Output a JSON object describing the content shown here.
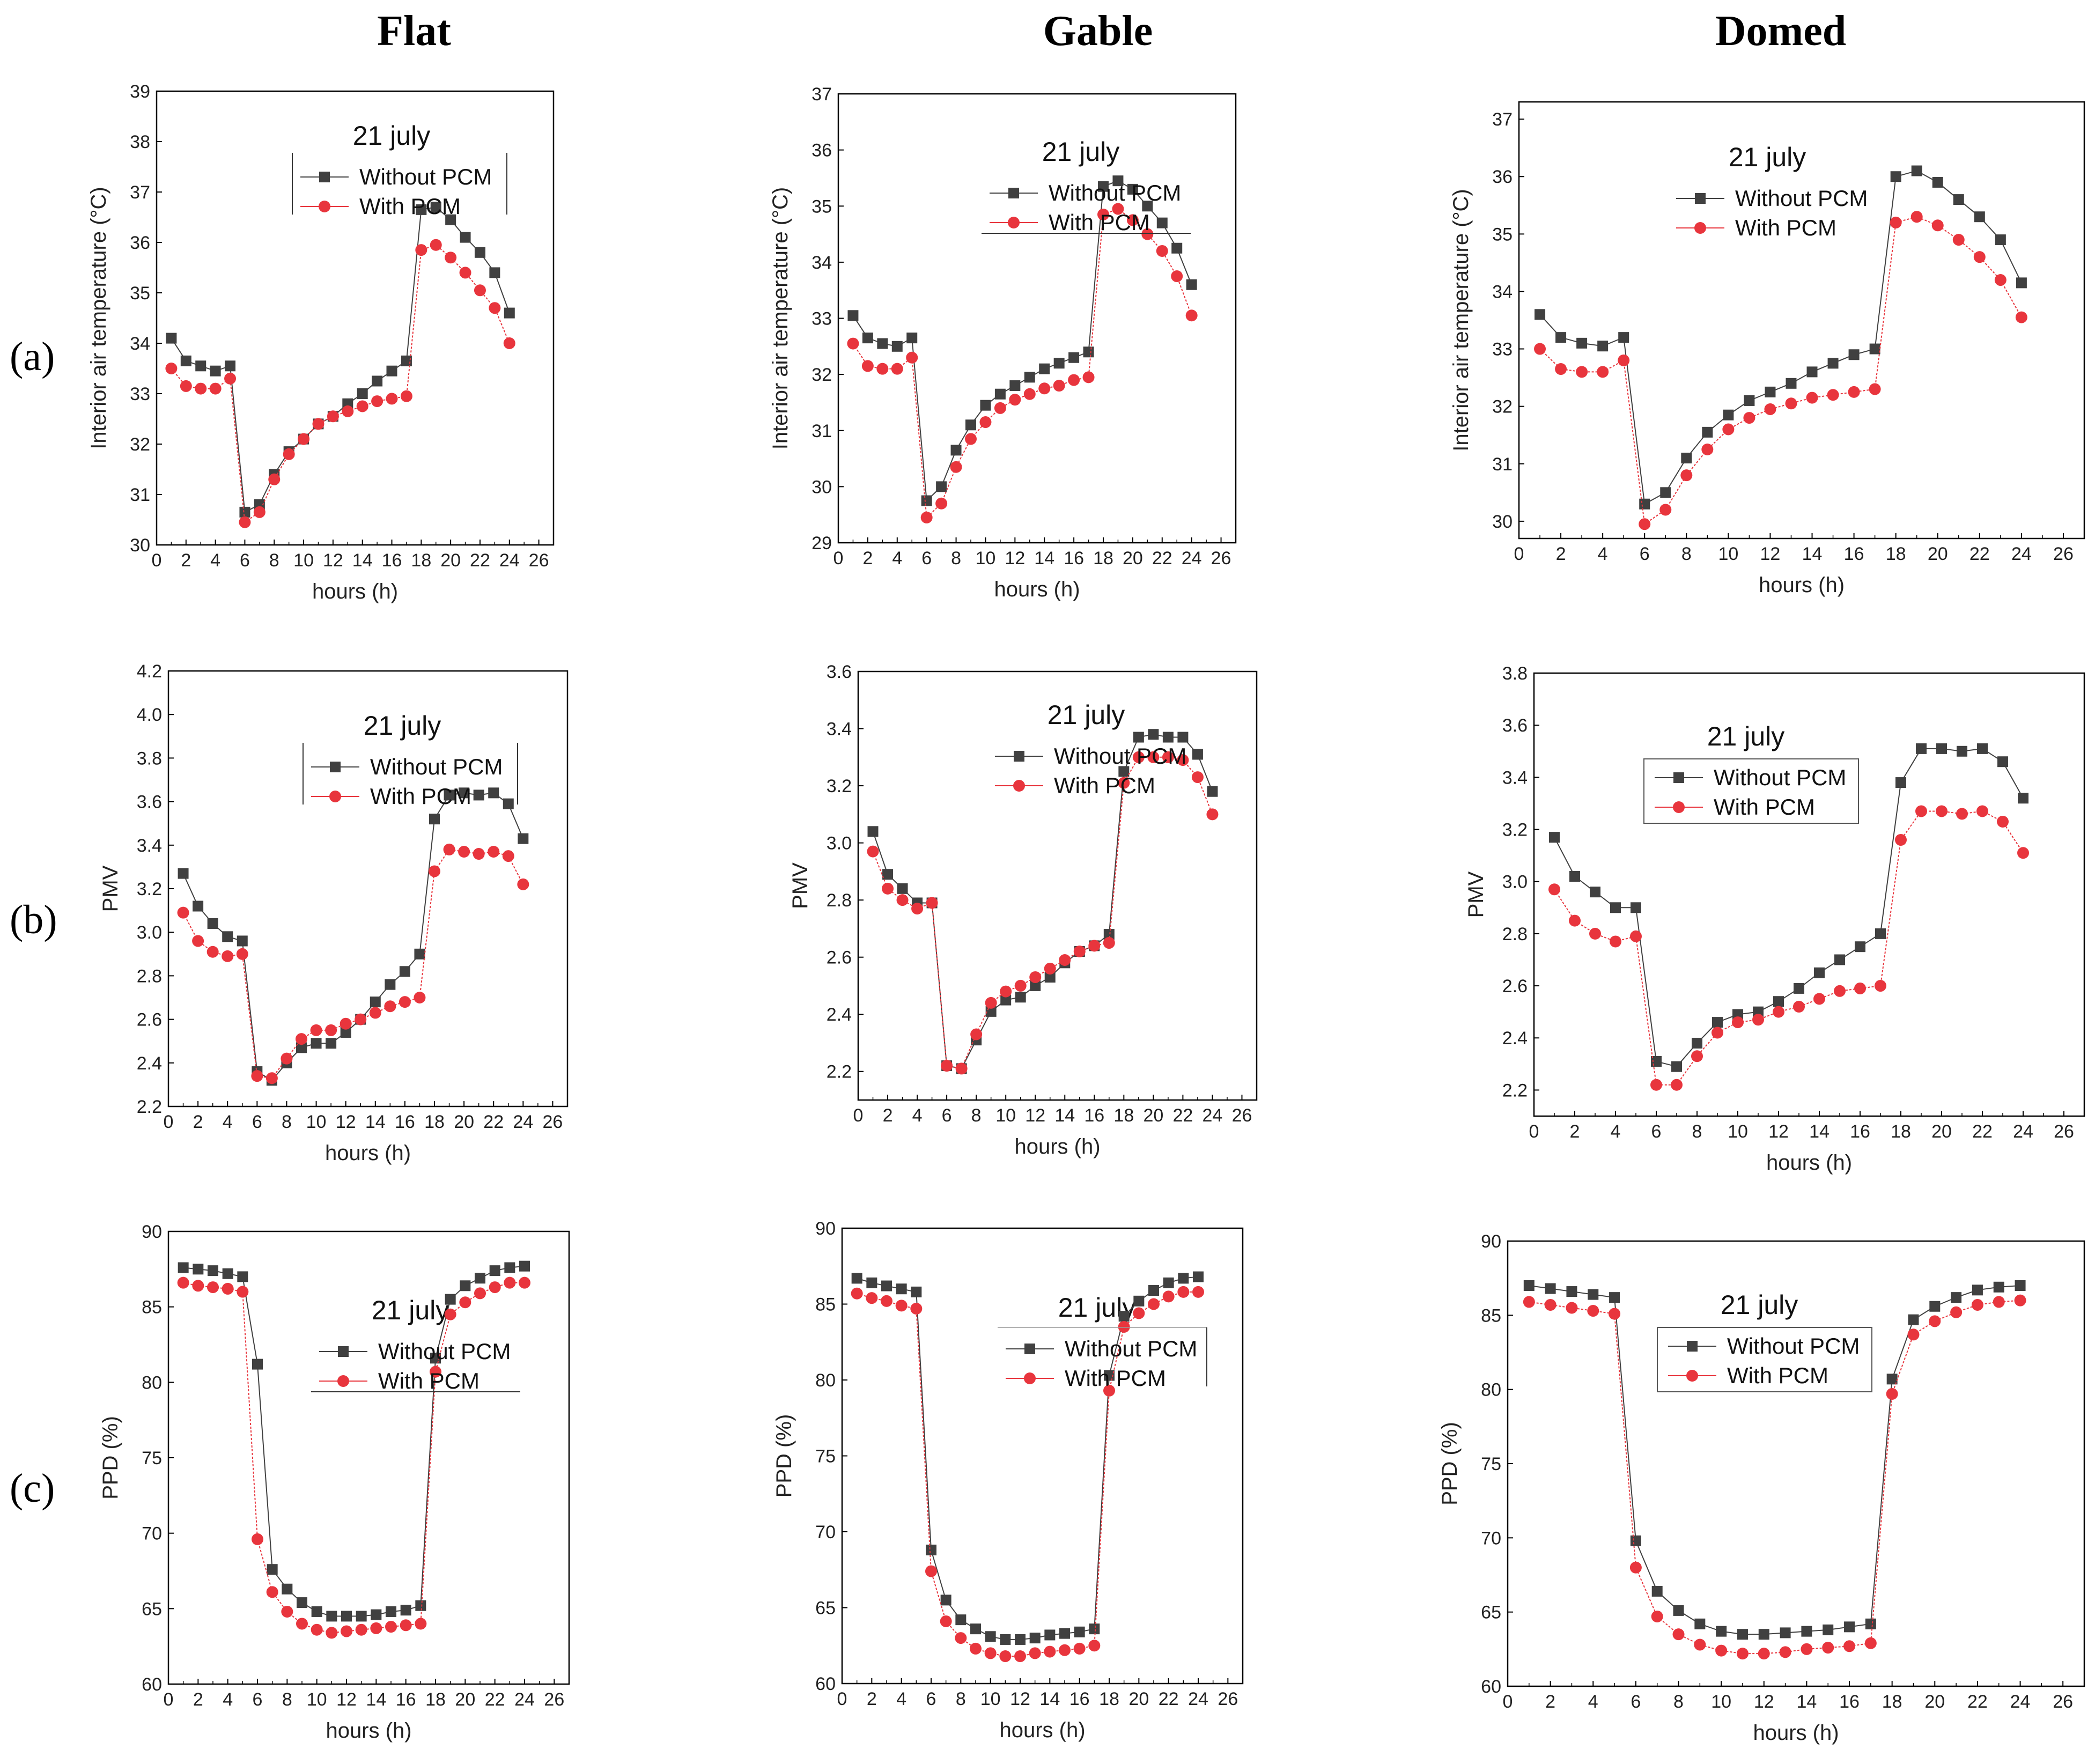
{
  "figure": {
    "column_headers": [
      "Flat",
      "Gable",
      "Domed"
    ],
    "row_labels": [
      "(a)",
      "(b)",
      "(c)"
    ]
  },
  "colors": {
    "without_pcm": "#404040",
    "with_pcm": "#e8353d",
    "axis": "#000000"
  },
  "chart_data": [
    {
      "id": "a-flat",
      "type": "line",
      "title": "21 july",
      "xlabel": "hours (h)",
      "ylabel": "Interior air temperature (°C)",
      "xlim": [
        0,
        27
      ],
      "ylim": [
        30,
        39
      ],
      "xticks": [
        0,
        2,
        4,
        6,
        8,
        10,
        12,
        14,
        16,
        18,
        20,
        22,
        24,
        26
      ],
      "yticks": [
        30,
        31,
        32,
        33,
        34,
        35,
        36,
        37,
        38,
        39
      ],
      "x": [
        1,
        2,
        3,
        4,
        5,
        6,
        7,
        8,
        9,
        10,
        11,
        12,
        13,
        14,
        15,
        16,
        17,
        18,
        19,
        20,
        21,
        22,
        23,
        24
      ],
      "series": [
        {
          "name": "Without PCM",
          "values": [
            34.1,
            33.65,
            33.55,
            33.45,
            33.55,
            30.65,
            30.8,
            31.4,
            31.85,
            32.1,
            32.4,
            32.55,
            32.8,
            33.0,
            33.25,
            33.45,
            33.65,
            36.65,
            36.7,
            36.45,
            36.1,
            35.8,
            35.4,
            34.6
          ]
        },
        {
          "name": "With PCM",
          "values": [
            33.5,
            33.15,
            33.1,
            33.1,
            33.3,
            30.45,
            30.65,
            31.3,
            31.8,
            32.1,
            32.4,
            32.55,
            32.65,
            32.75,
            32.85,
            32.9,
            32.95,
            35.85,
            35.95,
            35.7,
            35.4,
            35.05,
            34.7,
            34.0
          ]
        }
      ]
    },
    {
      "id": "a-gable",
      "type": "line",
      "title": "21 july",
      "xlabel": "hours (h)",
      "ylabel": "Interior air temperature (°C)",
      "xlim": [
        0,
        27
      ],
      "ylim": [
        29,
        37
      ],
      "xticks": [
        0,
        2,
        4,
        6,
        8,
        10,
        12,
        14,
        16,
        18,
        20,
        22,
        24,
        26
      ],
      "yticks": [
        29,
        30,
        31,
        32,
        33,
        34,
        35,
        36,
        37
      ],
      "x": [
        1,
        2,
        3,
        4,
        5,
        6,
        7,
        8,
        9,
        10,
        11,
        12,
        13,
        14,
        15,
        16,
        17,
        18,
        19,
        20,
        21,
        22,
        23,
        24
      ],
      "series": [
        {
          "name": "Without PCM",
          "values": [
            33.05,
            32.65,
            32.55,
            32.5,
            32.65,
            29.75,
            30.0,
            30.65,
            31.1,
            31.45,
            31.65,
            31.8,
            31.95,
            32.1,
            32.2,
            32.3,
            32.4,
            35.35,
            35.45,
            35.3,
            35.0,
            34.7,
            34.25,
            33.6
          ]
        },
        {
          "name": "With PCM",
          "values": [
            32.55,
            32.15,
            32.1,
            32.1,
            32.3,
            29.45,
            29.7,
            30.35,
            30.85,
            31.15,
            31.4,
            31.55,
            31.65,
            31.75,
            31.8,
            31.9,
            31.95,
            34.85,
            34.95,
            34.75,
            34.5,
            34.2,
            33.75,
            33.05
          ]
        }
      ]
    },
    {
      "id": "a-domed",
      "type": "line",
      "title": "21 july",
      "xlabel": "hours (h)",
      "ylabel": "Interior air temperature (°C)",
      "xlim": [
        0,
        27
      ],
      "ylim": [
        29.7,
        37.3
      ],
      "xticks": [
        0,
        2,
        4,
        6,
        8,
        10,
        12,
        14,
        16,
        18,
        20,
        22,
        24,
        26
      ],
      "yticks": [
        30,
        31,
        32,
        33,
        34,
        35,
        36,
        37
      ],
      "x": [
        1,
        2,
        3,
        4,
        5,
        6,
        7,
        8,
        9,
        10,
        11,
        12,
        13,
        14,
        15,
        16,
        17,
        18,
        19,
        20,
        21,
        22,
        23,
        24
      ],
      "series": [
        {
          "name": "Without PCM",
          "values": [
            33.6,
            33.2,
            33.1,
            33.05,
            33.2,
            30.3,
            30.5,
            31.1,
            31.55,
            31.85,
            32.1,
            32.25,
            32.4,
            32.6,
            32.75,
            32.9,
            33.0,
            36.0,
            36.1,
            35.9,
            35.6,
            35.3,
            34.9,
            34.15
          ]
        },
        {
          "name": "With PCM",
          "values": [
            33.0,
            32.65,
            32.6,
            32.6,
            32.8,
            29.95,
            30.2,
            30.8,
            31.25,
            31.6,
            31.8,
            31.95,
            32.05,
            32.15,
            32.2,
            32.25,
            32.3,
            35.2,
            35.3,
            35.15,
            34.9,
            34.6,
            34.2,
            33.55
          ]
        }
      ]
    },
    {
      "id": "b-flat",
      "type": "line",
      "title": "21 july",
      "xlabel": "hours (h)",
      "ylabel": "PMV",
      "xlim": [
        0,
        27
      ],
      "ylim": [
        2.2,
        4.2
      ],
      "xticks": [
        0,
        2,
        4,
        6,
        8,
        10,
        12,
        14,
        16,
        18,
        20,
        22,
        24,
        26
      ],
      "yticks": [
        2.2,
        2.4,
        2.6,
        2.8,
        3.0,
        3.2,
        3.4,
        3.6,
        3.8,
        4.0,
        4.2
      ],
      "x": [
        1,
        2,
        3,
        4,
        5,
        6,
        7,
        8,
        9,
        10,
        11,
        12,
        13,
        14,
        15,
        16,
        17,
        18,
        19,
        20,
        21,
        22,
        23,
        24
      ],
      "series": [
        {
          "name": "Without PCM",
          "values": [
            3.27,
            3.12,
            3.04,
            2.98,
            2.96,
            2.36,
            2.32,
            2.4,
            2.47,
            2.49,
            2.49,
            2.54,
            2.6,
            2.68,
            2.76,
            2.82,
            2.9,
            3.52,
            3.63,
            3.64,
            3.63,
            3.64,
            3.59,
            3.43
          ]
        },
        {
          "name": "With PCM",
          "values": [
            3.09,
            2.96,
            2.91,
            2.89,
            2.9,
            2.34,
            2.33,
            2.42,
            2.51,
            2.55,
            2.55,
            2.58,
            2.6,
            2.63,
            2.66,
            2.68,
            2.7,
            3.28,
            3.38,
            3.37,
            3.36,
            3.37,
            3.35,
            3.22
          ]
        }
      ]
    },
    {
      "id": "b-gable",
      "type": "line",
      "title": "21 july",
      "xlabel": "hours (h)",
      "ylabel": "PMV",
      "xlim": [
        0,
        27
      ],
      "ylim": [
        2.1,
        3.6
      ],
      "xticks": [
        0,
        2,
        4,
        6,
        8,
        10,
        12,
        14,
        16,
        18,
        20,
        22,
        24,
        26
      ],
      "yticks": [
        2.2,
        2.4,
        2.6,
        2.8,
        3.0,
        3.2,
        3.4,
        3.6
      ],
      "x": [
        1,
        2,
        3,
        4,
        5,
        6,
        7,
        8,
        9,
        10,
        11,
        12,
        13,
        14,
        15,
        16,
        17,
        18,
        19,
        20,
        21,
        22,
        23,
        24
      ],
      "series": [
        {
          "name": "Without PCM",
          "values": [
            3.04,
            2.89,
            2.84,
            2.79,
            2.79,
            2.22,
            2.21,
            2.31,
            2.41,
            2.45,
            2.46,
            2.5,
            2.53,
            2.58,
            2.62,
            2.64,
            2.68,
            3.25,
            3.37,
            3.38,
            3.37,
            3.37,
            3.31,
            3.18
          ]
        },
        {
          "name": "With PCM",
          "values": [
            2.97,
            2.84,
            2.8,
            2.77,
            2.79,
            2.22,
            2.21,
            2.33,
            2.44,
            2.48,
            2.5,
            2.53,
            2.56,
            2.59,
            2.62,
            2.64,
            2.65,
            3.21,
            3.3,
            3.3,
            3.3,
            3.29,
            3.23,
            3.1
          ]
        }
      ]
    },
    {
      "id": "b-domed",
      "type": "line",
      "title": "21 july",
      "xlabel": "hours (h)",
      "ylabel": "PMV",
      "xlim": [
        0,
        27
      ],
      "ylim": [
        2.1,
        3.8
      ],
      "xticks": [
        0,
        2,
        4,
        6,
        8,
        10,
        12,
        14,
        16,
        18,
        20,
        22,
        24,
        26
      ],
      "yticks": [
        2.2,
        2.4,
        2.6,
        2.8,
        3.0,
        3.2,
        3.4,
        3.6,
        3.8
      ],
      "x": [
        1,
        2,
        3,
        4,
        5,
        6,
        7,
        8,
        9,
        10,
        11,
        12,
        13,
        14,
        15,
        16,
        17,
        18,
        19,
        20,
        21,
        22,
        23,
        24
      ],
      "series": [
        {
          "name": "Without PCM",
          "values": [
            3.17,
            3.02,
            2.96,
            2.9,
            2.9,
            2.31,
            2.29,
            2.38,
            2.46,
            2.49,
            2.5,
            2.54,
            2.59,
            2.65,
            2.7,
            2.75,
            2.8,
            3.38,
            3.51,
            3.51,
            3.5,
            3.51,
            3.46,
            3.32
          ]
        },
        {
          "name": "With PCM",
          "values": [
            2.97,
            2.85,
            2.8,
            2.77,
            2.79,
            2.22,
            2.22,
            2.33,
            2.42,
            2.46,
            2.47,
            2.5,
            2.52,
            2.55,
            2.58,
            2.59,
            2.6,
            3.16,
            3.27,
            3.27,
            3.26,
            3.27,
            3.23,
            3.11
          ]
        }
      ]
    },
    {
      "id": "c-flat",
      "type": "line",
      "title": "21 july",
      "xlabel": "hours (h)",
      "ylabel": "PPD (%)",
      "xlim": [
        0,
        27
      ],
      "ylim": [
        60,
        90
      ],
      "xticks": [
        0,
        2,
        4,
        6,
        8,
        10,
        12,
        14,
        16,
        18,
        20,
        22,
        24,
        26
      ],
      "yticks": [
        60,
        65,
        70,
        75,
        80,
        85,
        90
      ],
      "x": [
        1,
        2,
        3,
        4,
        5,
        6,
        7,
        8,
        9,
        10,
        11,
        12,
        13,
        14,
        15,
        16,
        17,
        18,
        19,
        20,
        21,
        22,
        23,
        24
      ],
      "series": [
        {
          "name": "Without PCM",
          "values": [
            87.6,
            87.5,
            87.4,
            87.2,
            87.0,
            81.2,
            67.6,
            66.3,
            65.4,
            64.8,
            64.5,
            64.5,
            64.5,
            64.6,
            64.8,
            64.9,
            65.2,
            81.6,
            85.5,
            86.4,
            86.9,
            87.4,
            87.6,
            87.7
          ]
        },
        {
          "name": "With PCM",
          "values": [
            86.6,
            86.4,
            86.3,
            86.2,
            86.0,
            69.6,
            66.1,
            64.8,
            64.0,
            63.6,
            63.4,
            63.5,
            63.6,
            63.7,
            63.8,
            63.9,
            64.0,
            80.7,
            84.5,
            85.3,
            85.9,
            86.3,
            86.6,
            86.6
          ]
        }
      ]
    },
    {
      "id": "c-gable",
      "type": "line",
      "title": "21 july",
      "xlabel": "hours (h)",
      "ylabel": "PPD (%)",
      "xlim": [
        0,
        27
      ],
      "ylim": [
        60,
        90
      ],
      "xticks": [
        0,
        2,
        4,
        6,
        8,
        10,
        12,
        14,
        16,
        18,
        20,
        22,
        24,
        26
      ],
      "yticks": [
        60,
        65,
        70,
        75,
        80,
        85,
        90
      ],
      "x": [
        1,
        2,
        3,
        4,
        5,
        6,
        7,
        8,
        9,
        10,
        11,
        12,
        13,
        14,
        15,
        16,
        17,
        18,
        19,
        20,
        21,
        22,
        23,
        24
      ],
      "series": [
        {
          "name": "Without PCM",
          "values": [
            86.7,
            86.4,
            86.2,
            86.0,
            85.8,
            68.8,
            65.5,
            64.2,
            63.6,
            63.1,
            62.9,
            62.9,
            63.0,
            63.2,
            63.3,
            63.4,
            63.6,
            80.3,
            84.2,
            85.2,
            85.9,
            86.4,
            86.7,
            86.8
          ]
        },
        {
          "name": "With PCM",
          "values": [
            85.7,
            85.4,
            85.2,
            84.9,
            84.7,
            67.4,
            64.1,
            63.0,
            62.3,
            62.0,
            61.8,
            61.8,
            62.0,
            62.1,
            62.2,
            62.3,
            62.5,
            79.3,
            83.5,
            84.4,
            85.0,
            85.5,
            85.8,
            85.8
          ]
        }
      ]
    },
    {
      "id": "c-domed",
      "type": "line",
      "title": "21 july",
      "xlabel": "hours (h)",
      "ylabel": "PPD (%)",
      "xlim": [
        0,
        27
      ],
      "ylim": [
        60,
        90
      ],
      "xticks": [
        0,
        2,
        4,
        6,
        8,
        10,
        12,
        14,
        16,
        18,
        20,
        22,
        24,
        26
      ],
      "yticks": [
        60,
        65,
        70,
        75,
        80,
        85,
        90
      ],
      "x": [
        1,
        2,
        3,
        4,
        5,
        6,
        7,
        8,
        9,
        10,
        11,
        12,
        13,
        14,
        15,
        16,
        17,
        18,
        19,
        20,
        21,
        22,
        23,
        24
      ],
      "series": [
        {
          "name": "Without PCM",
          "values": [
            87.0,
            86.8,
            86.6,
            86.4,
            86.2,
            69.8,
            66.4,
            65.1,
            64.2,
            63.7,
            63.5,
            63.5,
            63.6,
            63.7,
            63.8,
            64.0,
            64.2,
            80.7,
            84.7,
            85.6,
            86.2,
            86.7,
            86.9,
            87.0
          ]
        },
        {
          "name": "With PCM",
          "values": [
            85.9,
            85.7,
            85.5,
            85.3,
            85.1,
            68.0,
            64.7,
            63.5,
            62.8,
            62.4,
            62.2,
            62.2,
            62.3,
            62.5,
            62.6,
            62.7,
            62.9,
            79.7,
            83.7,
            84.6,
            85.2,
            85.7,
            85.9,
            86.0
          ]
        }
      ]
    }
  ]
}
